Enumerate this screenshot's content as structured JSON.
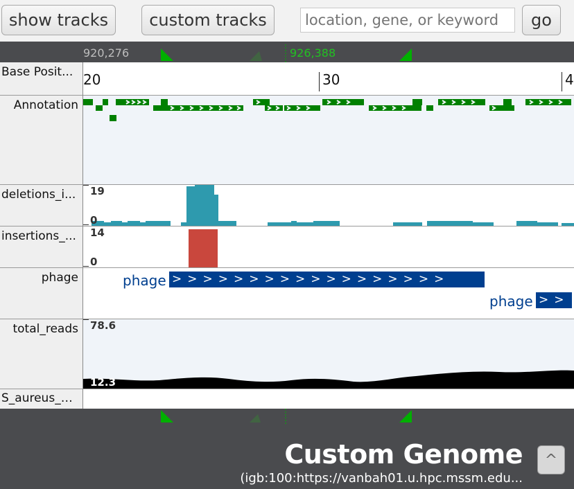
{
  "toolbar": {
    "show_tracks_label": "show tracks",
    "custom_tracks_label": "custom tracks",
    "search_placeholder": "location, gene, or keyword",
    "go_label": "go"
  },
  "navigator": {
    "left_coord": "920,276",
    "center_coord": "926,388"
  },
  "ruler": {
    "ticks": [
      "20",
      "30",
      "4"
    ]
  },
  "tracks": [
    {
      "label": "Base Posit..."
    },
    {
      "label": "Annotation"
    },
    {
      "label": "deletions_i...",
      "max": "19",
      "min": "0"
    },
    {
      "label": "insertions_...",
      "max": "14",
      "min": "0"
    },
    {
      "label": "phage",
      "feature_label_1": "phage",
      "feature_label_2": "phage"
    },
    {
      "label": "total_reads",
      "max": "78.6",
      "min": "12.3"
    },
    {
      "label": "S_aureus_E..."
    }
  ],
  "genome": {
    "title": "Custom Genome",
    "subtitle": "(igb:100:https://vanbah01.u.hpc.mssm.edu...",
    "up_icon": "^"
  },
  "colors": {
    "annotation": "#008000",
    "deletions": "#2e9aae",
    "insertions": "#c9473d",
    "phage": "#003f8f",
    "coverage": "#000000",
    "nav_marker": "#00b000"
  }
}
